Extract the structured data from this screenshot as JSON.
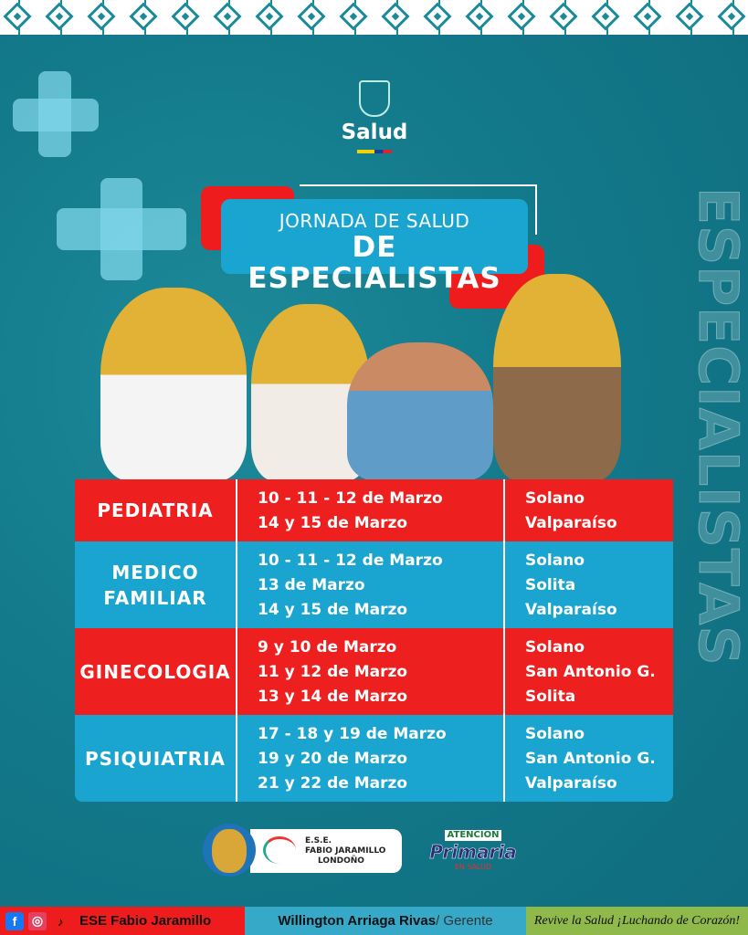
{
  "header": {
    "brand": "Salud",
    "title_line1": "JORNADA DE SALUD",
    "title_line2": "DE ESPECIALISTAS"
  },
  "watermark": "ESPECIALISTAS",
  "schedule": [
    {
      "specialty": "PEDIATRIA",
      "dates": [
        "10 - 11 - 12 de Marzo",
        "14 y 15 de Marzo"
      ],
      "places": [
        "Solano",
        "Valparaíso"
      ]
    },
    {
      "specialty": "MEDICO FAMILIAR",
      "dates": [
        "10 - 11 - 12 de Marzo",
        "13 de Marzo",
        "14 y 15 de Marzo"
      ],
      "places": [
        "Solano",
        "Solita",
        "Valparaíso"
      ]
    },
    {
      "specialty": "GINECOLOGIA",
      "dates": [
        "9 y 10 de Marzo",
        "11 y 12 de Marzo",
        "13 y 14 de Marzo"
      ],
      "places": [
        "Solano",
        "San Antonio G.",
        "Solita"
      ]
    },
    {
      "specialty": "PSIQUIATRIA",
      "dates": [
        "17 - 18 y 19 de Marzo",
        "19 y 20 de Marzo",
        "21 y 22 de Marzo"
      ],
      "places": [
        "Solano",
        "San Antonio G.",
        "Valparaíso"
      ]
    }
  ],
  "logos": {
    "ese_line1": "E.S.E.",
    "ese_line2": "FABIO JARAMILLO",
    "ese_line3": "LONDOÑO",
    "ap_line1": "ATENCIÓN",
    "ap_line2": "Primaria",
    "ap_line3": "EN SALUD"
  },
  "footer": {
    "social_name": "ESE Fabio Jaramillo",
    "manager_name": "Willington Arriaga Rivas",
    "manager_role": "/ Gerente",
    "slogan": "Revive la Salud ¡Luchando de Corazón!"
  },
  "colors": {
    "red": "#ee1f1f",
    "blue": "#1aa5d0",
    "teal": "#137b8c",
    "green": "#8fb94b"
  }
}
